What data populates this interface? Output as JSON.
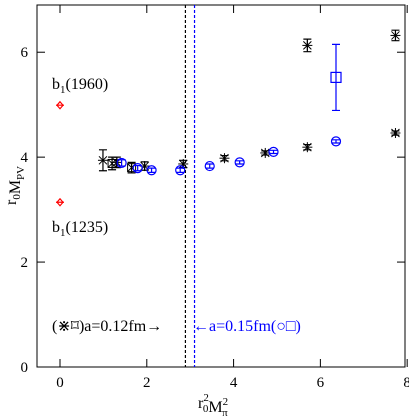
{
  "chart_data": {
    "type": "scatter",
    "xlabel": [
      {
        "text": "r",
        "sub": "0",
        "sup": "2"
      },
      {
        "text": "M",
        "sub": "π",
        "sup": "2"
      }
    ],
    "ylabel": [
      {
        "text": "r",
        "sub": "0"
      },
      {
        "text": "M",
        "sub": "PV"
      }
    ],
    "xlim": [
      -0.53,
      7.95
    ],
    "ylim": [
      0,
      6.9
    ],
    "xticks": [
      0,
      2,
      4,
      6,
      8
    ],
    "yticks": [
      0,
      2,
      4,
      6
    ],
    "series": [
      {
        "name": "a=0.12fm star",
        "marker": "star",
        "color": "#000000",
        "x": [
          0.99,
          1.31,
          1.95,
          2.84,
          3.79,
          4.73,
          5.7,
          7.73,
          5.7,
          7.73
        ],
        "values": [
          3.94,
          3.9,
          3.83,
          3.87,
          3.98,
          4.08,
          4.19,
          4.46,
          6.13,
          6.32
        ],
        "errors": [
          0.2,
          0.1,
          0.08,
          0.07,
          0.05,
          0.04,
          0.05,
          0.04,
          0.12,
          0.1
        ]
      },
      {
        "name": "a=0.12fm box",
        "marker": "xbox",
        "color": "#000000",
        "x": [
          1.2,
          1.65
        ],
        "values": [
          3.88,
          3.8
        ],
        "errors": [
          0.12,
          0.1
        ]
      },
      {
        "name": "a=0.15fm circle",
        "marker": "circle",
        "color": "#0000ff",
        "x": [
          1.42,
          1.79,
          2.11,
          2.77,
          3.45,
          4.14,
          4.92,
          6.36
        ],
        "values": [
          3.89,
          3.79,
          3.75,
          3.75,
          3.83,
          3.9,
          4.1,
          4.3
        ],
        "errors": [
          0.06,
          0.05,
          0.04,
          0.04,
          0.04,
          0.03,
          0.03,
          0.03
        ]
      },
      {
        "name": "a=0.15fm square",
        "marker": "square",
        "color": "#0000ff",
        "x": [
          6.36
        ],
        "values": [
          5.52
        ],
        "errors": [
          0.63
        ]
      },
      {
        "name": "b1",
        "marker": "diamond",
        "color": "#ff0000",
        "x": [
          0,
          0
        ],
        "values": [
          4.99,
          3.14
        ],
        "errors": [
          0,
          0
        ]
      }
    ],
    "vlines": [
      {
        "x": 2.89,
        "color": "#000000"
      },
      {
        "x": 3.1,
        "color": "#0000ff"
      }
    ],
    "annotations": [
      {
        "text": "b",
        "sub": "1",
        "rest": "(1960)",
        "color": "#000000"
      },
      {
        "text": "b",
        "sub": "1",
        "rest": "(1235)",
        "color": "#000000"
      },
      {
        "text": "(⋇⌑)a=0.12fm→",
        "color": "#000000"
      },
      {
        "text": "←a=0.15fm(○□)",
        "color": "#0000ff"
      }
    ]
  }
}
